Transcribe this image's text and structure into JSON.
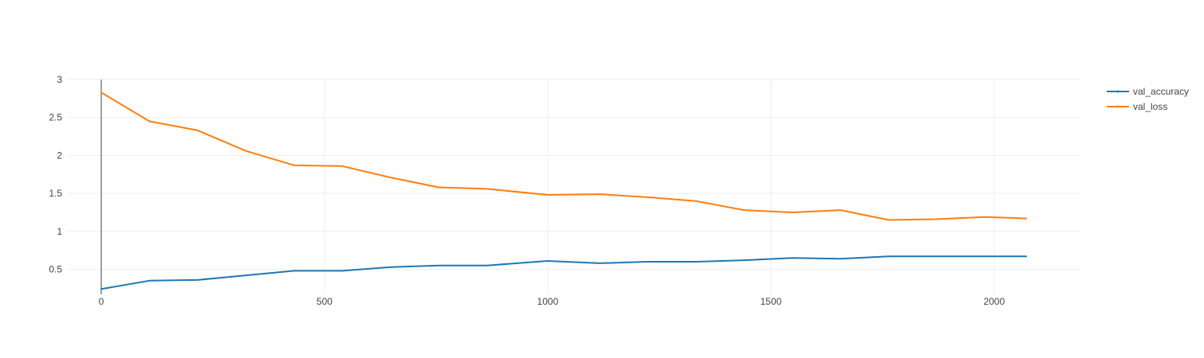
{
  "chart_data": {
    "type": "line",
    "title": "",
    "xlabel": "",
    "ylabel": "",
    "xlim": [
      -75,
      2195
    ],
    "ylim": [
      0.17,
      3.0
    ],
    "x_ticks": [
      0,
      500,
      1000,
      1500,
      2000
    ],
    "y_ticks": [
      0.5,
      1,
      1.5,
      2,
      2.5,
      3
    ],
    "grid": true,
    "legend_position": "top-right",
    "x": [
      0,
      108,
      216,
      324,
      432,
      540,
      648,
      756,
      864,
      1000,
      1116,
      1224,
      1332,
      1440,
      1548,
      1656,
      1764,
      1872,
      1980,
      2072
    ],
    "series": [
      {
        "name": "val_accuracy",
        "color": "#1f77b4",
        "values": [
          0.24,
          0.35,
          0.36,
          0.42,
          0.48,
          0.48,
          0.53,
          0.55,
          0.55,
          0.61,
          0.58,
          0.6,
          0.6,
          0.62,
          0.65,
          0.64,
          0.67,
          0.67,
          0.67,
          0.67
        ]
      },
      {
        "name": "val_loss",
        "color": "#ff7f0e",
        "values": [
          2.83,
          2.45,
          2.33,
          2.06,
          1.87,
          1.86,
          1.71,
          1.58,
          1.56,
          1.48,
          1.49,
          1.45,
          1.4,
          1.28,
          1.25,
          1.28,
          1.15,
          1.16,
          1.19,
          1.17
        ]
      }
    ]
  }
}
